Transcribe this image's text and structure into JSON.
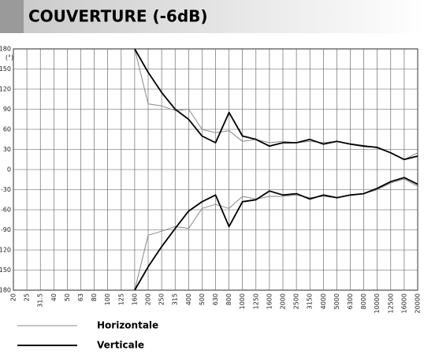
{
  "chart_data": {
    "type": "line",
    "title": "COUVERTURE (-6dB)",
    "y_unit": "(°)",
    "categories": [
      "20",
      "25",
      "31.5",
      "40",
      "50",
      "63",
      "80",
      "100",
      "125",
      "160",
      "200",
      "250",
      "315",
      "400",
      "500",
      "630",
      "800",
      "1000",
      "1250",
      "1600",
      "2000",
      "2500",
      "3150",
      "4000",
      "5000",
      "6300",
      "8000",
      "10000",
      "12500",
      "16000",
      "20000"
    ],
    "series": [
      {
        "name": "Horizontale",
        "color": "#888888",
        "upper": [
          null,
          null,
          null,
          null,
          null,
          null,
          null,
          null,
          null,
          180,
          98,
          95,
          88,
          90,
          60,
          55,
          58,
          42,
          45,
          40,
          42,
          40,
          42,
          40,
          42,
          38,
          36,
          32,
          25,
          15,
          25
        ],
        "lower": [
          null,
          null,
          null,
          null,
          null,
          null,
          null,
          null,
          null,
          -180,
          -98,
          -92,
          -85,
          -88,
          -58,
          -52,
          -58,
          -40,
          -44,
          -40,
          -40,
          -38,
          -42,
          -40,
          -42,
          -38,
          -36,
          -30,
          -20,
          -14,
          -25
        ]
      },
      {
        "name": "Verticale",
        "color": "#000000",
        "upper": [
          null,
          null,
          null,
          null,
          null,
          null,
          null,
          null,
          null,
          180,
          145,
          115,
          90,
          75,
          50,
          40,
          85,
          50,
          45,
          35,
          40,
          40,
          45,
          38,
          42,
          38,
          35,
          33,
          25,
          15,
          20
        ],
        "lower": [
          null,
          null,
          null,
          null,
          null,
          null,
          null,
          null,
          null,
          -180,
          -145,
          -115,
          -88,
          -62,
          -48,
          -38,
          -85,
          -48,
          -45,
          -32,
          -38,
          -36,
          -44,
          -38,
          -42,
          -38,
          -36,
          -28,
          -18,
          -12,
          -22
        ]
      }
    ],
    "ylim": [
      -180,
      180
    ],
    "yticks": [
      180,
      150,
      120,
      90,
      60,
      30,
      0,
      -30,
      -60,
      -90,
      -120,
      -150,
      -180
    ],
    "grid": true
  }
}
